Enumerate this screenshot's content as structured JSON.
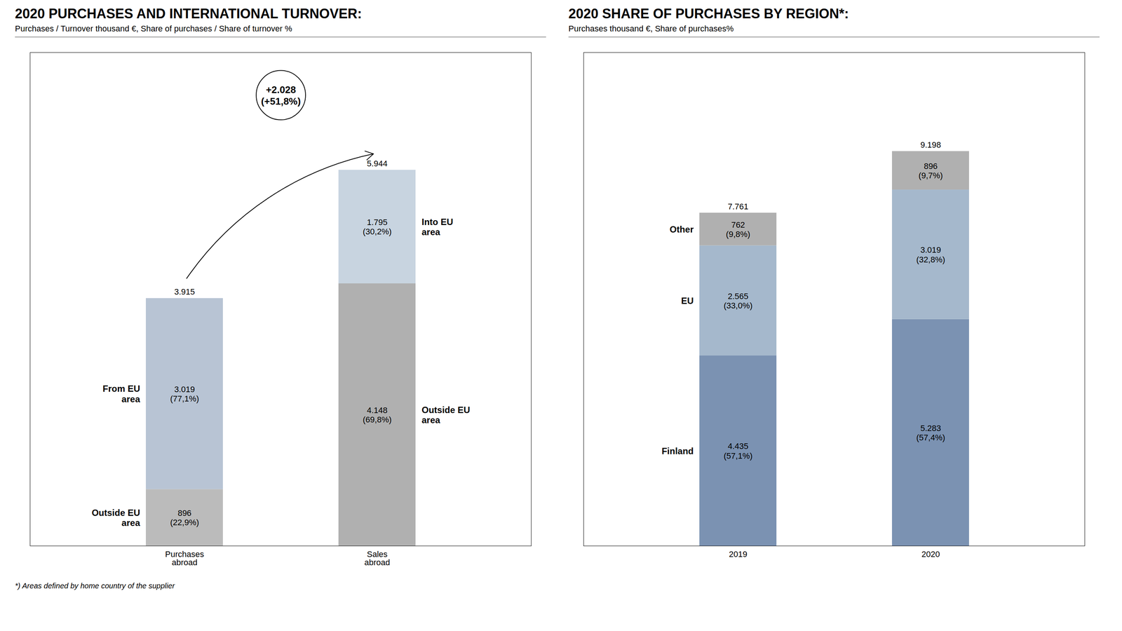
{
  "chart_data": [
    {
      "type": "bar",
      "stacked": true,
      "title": "2020 PURCHASES AND INTERNATIONAL TURNOVER:",
      "subtitle": "Purchases / Turnover thousand €, Share of purchases / Share of turnover %",
      "categories": [
        "Purchases\nabroad",
        "Sales\nabroad"
      ],
      "series": [
        {
          "values": [
            896,
            4148
          ],
          "value_labels": [
            "896\n(22,9%)",
            "4.148\n(69,8%)"
          ],
          "colors": [
            "#bbbbbb",
            "#b0b0b0"
          ]
        },
        {
          "values": [
            3019,
            1795
          ],
          "value_labels": [
            "3.019\n(77,1%)",
            "1.795\n(30,2%)"
          ],
          "colors": [
            "#b8c4d4",
            "#c8d4e0"
          ]
        }
      ],
      "totals": [
        3915,
        5944
      ],
      "total_labels": [
        "3.915",
        "5.944"
      ],
      "annotations": [
        {
          "text": "Outside EU\narea",
          "category": "Purchases\nabroad",
          "series": 0
        },
        {
          "text": "From EU\narea",
          "category": "Purchases\nabroad",
          "series": 1
        },
        {
          "text": "Into EU\narea",
          "category": "Sales\nabroad",
          "series": 1
        },
        {
          "text": "Outside EU\narea",
          "category": "Sales\nabroad",
          "series": 0
        },
        {
          "text": "+2.028\n(+51,8%)",
          "from": "Purchases\nabroad",
          "to": "Sales\nabroad"
        }
      ],
      "ylim": [
        0,
        7800
      ],
      "yticks": [],
      "tick_labels": "x",
      "data_labels": true,
      "grid": false
    },
    {
      "type": "bar",
      "stacked": true,
      "title": "2020 SHARE OF PURCHASES BY REGION*:",
      "subtitle": "Purchases thousand €, Share of purchases%",
      "categories": [
        "2019",
        "2020"
      ],
      "series": [
        {
          "name": "Finland",
          "color": "#7b92b2",
          "values": [
            4435,
            5283
          ],
          "value_labels": [
            "4.435\n(57,1%)",
            "5.283\n(57,4%)"
          ]
        },
        {
          "name": "EU",
          "color": "#a5b8cc",
          "values": [
            2565,
            3019
          ],
          "value_labels": [
            "2.565\n(33,0%)",
            "3.019\n(32,8%)"
          ]
        },
        {
          "name": "Other",
          "color": "#b0b0b0",
          "values": [
            762,
            896
          ],
          "value_labels": [
            "762\n(9,8%)",
            "896\n(9,7%)"
          ]
        }
      ],
      "totals": [
        7761,
        9198
      ],
      "total_labels": [
        "7.761",
        "9.198"
      ],
      "ylim": [
        0,
        11500
      ],
      "yticks": [],
      "tick_labels": "x",
      "data_labels": true,
      "grid": false,
      "footnote": "*) Areas defined by home country of the supplier"
    }
  ]
}
